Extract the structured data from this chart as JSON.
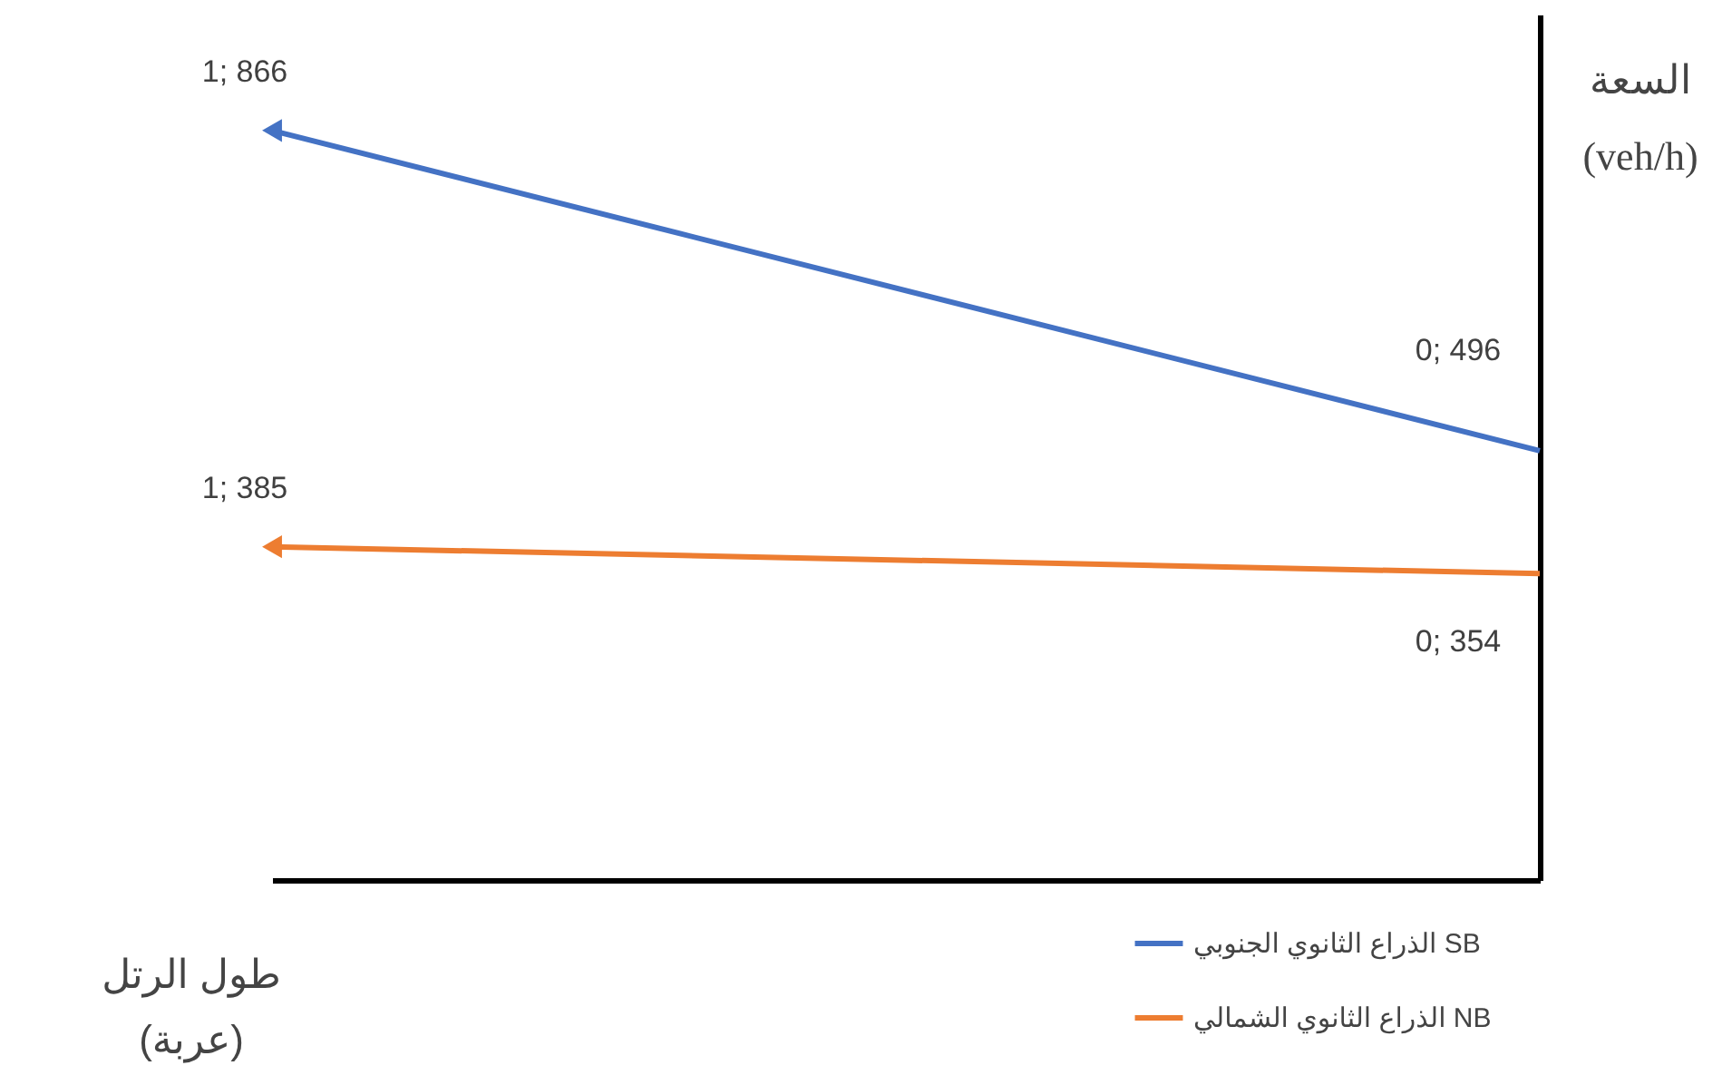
{
  "chart_data": {
    "type": "line",
    "xlabel": "طول الرتل\n(عربة)",
    "ylabel": "السعة\n(veh/h)",
    "categories": [
      null,
      null
    ],
    "series": [
      {
        "name": "الذراع الثانوي الجنوبي SB",
        "color": "#4472c4",
        "values": [
          866,
          496
        ],
        "value_labels": [
          "1; 866",
          "0; 496"
        ]
      },
      {
        "name": "الذراع الثانوي الشمالي NB",
        "color": "#ed7d31",
        "values": [
          385,
          354
        ],
        "value_labels": [
          "1; 385",
          "0; 354"
        ]
      }
    ],
    "ylim": [
      0,
      1000
    ],
    "legend": "bottom right",
    "tick_labels": false,
    "grid": false
  }
}
